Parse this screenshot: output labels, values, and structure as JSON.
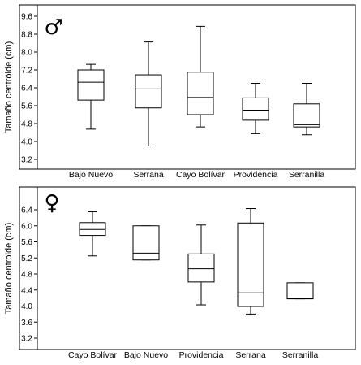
{
  "chart_data": [
    {
      "type": "box",
      "panel_symbol": "♂",
      "ylabel": "Tamaño centroide (cm)",
      "yticks": [
        3.2,
        4.0,
        4.8,
        5.6,
        6.4,
        7.2,
        8.0,
        8.8,
        9.6
      ],
      "ytick_labels": [
        "3.2",
        "4.0",
        "4.8",
        "5.6",
        "6.4",
        "7.2",
        "8.0",
        "8.8",
        "9.6"
      ],
      "ylim": [
        2.9,
        9.9
      ],
      "categories": [
        "Bajo Nuevo",
        "Serrana",
        "Cayo Bolívar",
        "Providencia",
        "Serranilla"
      ],
      "boxes": [
        {
          "min": 4.55,
          "q1": 5.85,
          "median": 6.65,
          "q3": 7.2,
          "max": 7.45
        },
        {
          "min": 3.8,
          "q1": 5.5,
          "median": 6.35,
          "q3": 6.98,
          "max": 8.45
        },
        {
          "min": 4.65,
          "q1": 5.2,
          "median": 5.97,
          "q3": 7.1,
          "max": 9.15
        },
        {
          "min": 4.35,
          "q1": 4.95,
          "median": 5.4,
          "q3": 5.95,
          "max": 6.6
        },
        {
          "min": 4.3,
          "q1": 4.65,
          "median": 4.75,
          "q3": 5.68,
          "max": 6.6
        }
      ]
    },
    {
      "type": "box",
      "panel_symbol": "♀",
      "ylabel": "Tamaño centroide (cm)",
      "yticks": [
        3.2,
        3.6,
        4.0,
        4.4,
        4.8,
        5.2,
        5.6,
        6.0,
        6.4
      ],
      "ytick_labels": [
        "3.2",
        "3.6",
        "4.0",
        "4.4",
        "4.8",
        "5.2",
        "5.6",
        "6.0",
        "6.4"
      ],
      "ylim": [
        3.0,
        6.65
      ],
      "categories": [
        "Cayo Bolívar",
        "Bajo Nuevo",
        "Providencia",
        "Serrana",
        "Serranilla"
      ],
      "boxes": [
        {
          "min": 5.25,
          "q1": 5.76,
          "median": 5.91,
          "q3": 6.08,
          "max": 6.35
        },
        {
          "min": 5.15,
          "q1": 5.15,
          "median": 5.32,
          "q3": 6.0,
          "max": 6.0
        },
        {
          "min": 4.03,
          "q1": 4.6,
          "median": 4.93,
          "q3": 5.3,
          "max": 6.02
        },
        {
          "min": 3.8,
          "q1": 3.99,
          "median": 4.33,
          "q3": 6.07,
          "max": 6.43
        },
        {
          "min": 4.18,
          "q1": 4.18,
          "median": 4.19,
          "q3": 4.58,
          "max": 4.58
        }
      ]
    }
  ]
}
